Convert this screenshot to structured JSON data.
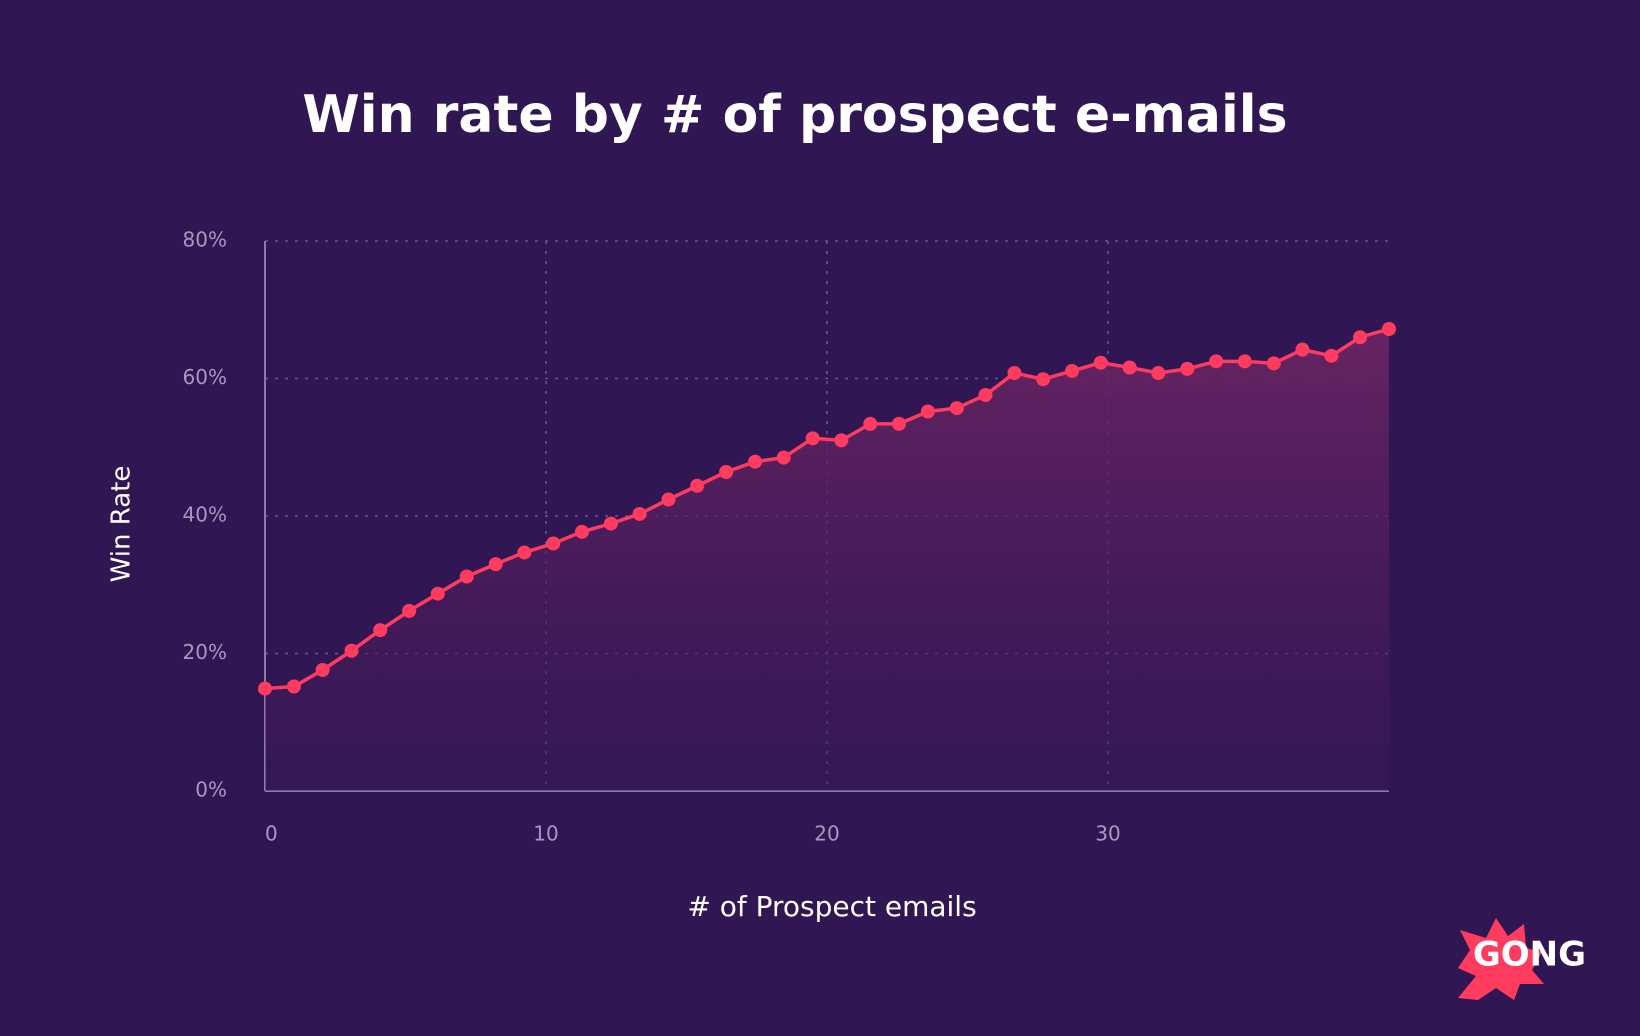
{
  "chart_data": {
    "type": "line",
    "title": "Win rate by # of prospect e-mails",
    "x_label": "# of Prospect emails",
    "y_label": "Win Rate",
    "x": [
      0,
      1.03,
      2.05,
      3.08,
      4.1,
      5.13,
      6.15,
      7.18,
      8.21,
      9.23,
      10.26,
      11.28,
      12.31,
      13.33,
      14.36,
      15.38,
      16.41,
      17.44,
      18.46,
      19.49,
      20.51,
      21.54,
      22.56,
      23.59,
      24.62,
      25.64,
      26.67,
      27.69,
      28.72,
      29.74,
      30.77,
      31.79,
      32.82,
      33.85,
      34.87,
      35.9,
      36.92,
      37.95,
      38.97,
      40
    ],
    "series": [
      {
        "name": "Win Rate",
        "color": "#ff3b5f",
        "values": [
          14.9,
          15.2,
          17.6,
          20.4,
          23.4,
          26.2,
          28.7,
          31.2,
          33.0,
          34.7,
          36.0,
          37.7,
          38.9,
          40.3,
          42.4,
          44.4,
          46.4,
          47.9,
          48.5,
          51.3,
          51.0,
          53.4,
          53.4,
          55.2,
          55.7,
          57.6,
          60.8,
          59.9,
          61.1,
          62.3,
          61.6,
          60.8,
          61.4,
          62.5,
          62.5,
          62.2,
          64.2,
          63.3,
          66.0,
          67.2
        ]
      }
    ],
    "xlim": [
      0,
      40
    ],
    "xticks": [
      0,
      10,
      20,
      30
    ],
    "ylim": [
      0,
      80
    ],
    "yticks": [
      {
        "value": 0,
        "label": "0%"
      },
      {
        "value": 20,
        "label": "20%"
      },
      {
        "value": 40,
        "label": "40%"
      },
      {
        "value": 60,
        "label": "60%"
      },
      {
        "value": 80,
        "label": "80%"
      }
    ],
    "grid": true,
    "area": true,
    "logo": "GONG"
  }
}
